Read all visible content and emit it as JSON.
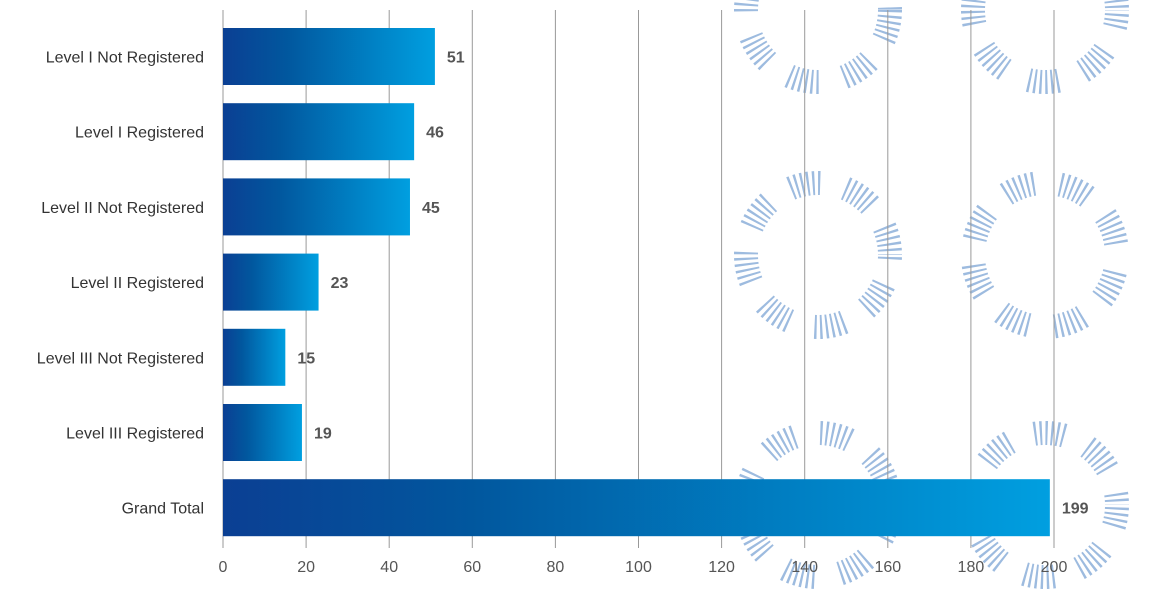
{
  "chart_data": {
    "type": "bar",
    "orientation": "horizontal",
    "categories": [
      "Level I Not Registered",
      "Level I Registered",
      "Level II Not Registered",
      "Level II Registered",
      "Level III Not Registered",
      "Level III Registered",
      "Grand Total"
    ],
    "values": [
      51,
      46,
      45,
      23,
      15,
      19,
      199
    ],
    "data_labels": [
      "51",
      "46",
      "45",
      "23",
      "15",
      "19",
      "199"
    ],
    "x_ticks": [
      "0",
      "20",
      "40",
      "60",
      "80",
      "100",
      "120",
      "140",
      "160",
      "180",
      "200"
    ],
    "xlim": [
      0,
      200
    ],
    "grid": "vertical",
    "legend": "none",
    "title": "",
    "xlabel": "",
    "ylabel": "",
    "colors": {
      "bar_dark": "#0b3f93",
      "bar_mid": "#01579e",
      "bar_light": "#009fe0",
      "gridline": "#999999",
      "watermark": "#9dbbdf"
    }
  }
}
